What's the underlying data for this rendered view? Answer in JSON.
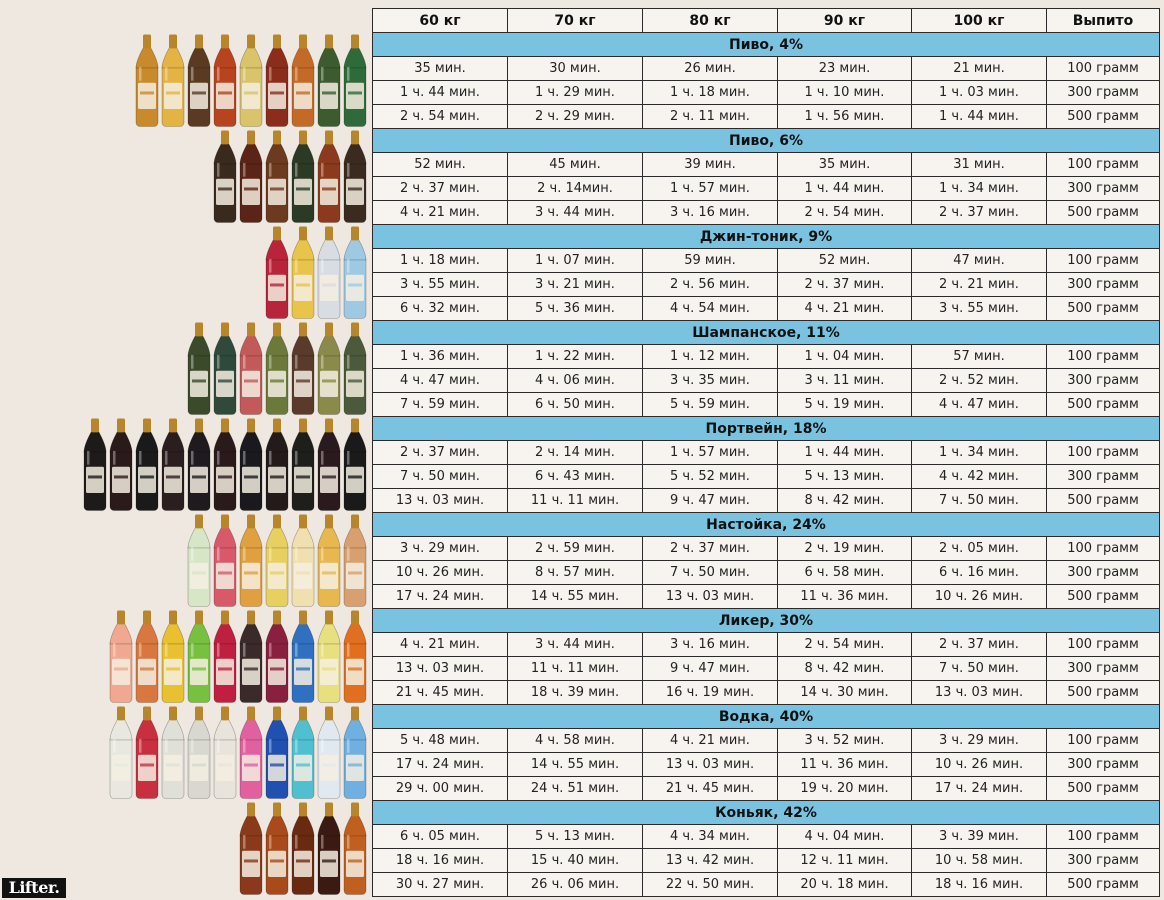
{
  "logo": "Lifter.",
  "table": {
    "headers": [
      "60 кг",
      "70 кг",
      "80 кг",
      "90 кг",
      "100 кг",
      "Выпито"
    ],
    "sections": [
      {
        "title": "Пиво, 4%",
        "bottles": {
          "count": 9,
          "colors": [
            "#c98a2b",
            "#e3b343",
            "#5a3b22",
            "#b8441f",
            "#d9c36b",
            "#8b2d1a",
            "#c46a27",
            "#3c5b2f",
            "#2f6b3a"
          ]
        },
        "rows": [
          [
            "35 мин.",
            "30 мин.",
            "26 мин.",
            "23 мин.",
            "21 мин.",
            "100 грамм"
          ],
          [
            "1 ч. 44 мин.",
            "1 ч. 29 мин.",
            "1 ч. 18 мин.",
            "1 ч. 10 мин.",
            "1 ч. 03 мин.",
            "300 грамм"
          ],
          [
            "2 ч. 54 мин.",
            "2 ч. 29 мин.",
            "2 ч. 11 мин.",
            "1 ч. 56 мин.",
            "1 ч. 44 мин.",
            "500 грамм"
          ]
        ]
      },
      {
        "title": "Пиво, 6%",
        "bottles": {
          "count": 6,
          "colors": [
            "#3a2a1e",
            "#5a2416",
            "#6b3a1f",
            "#2b3a25",
            "#8b3a1e",
            "#3b2a20"
          ]
        },
        "rows": [
          [
            "52 мин.",
            "45 мин.",
            "39 мин.",
            "35 мин.",
            "31 мин.",
            "100 грамм"
          ],
          [
            "2 ч. 37 мин.",
            "2 ч. 14мин.",
            "1 ч. 57 мин.",
            "1 ч. 44 мин.",
            "1 ч. 34 мин.",
            "300 грамм"
          ],
          [
            "4 ч. 21 мин.",
            "3 ч. 44 мин.",
            "3 ч. 16 мин.",
            "2 ч. 54 мин.",
            "2 ч. 37 мин.",
            "500 грамм"
          ]
        ]
      },
      {
        "title": "Джин-тоник, 9%",
        "bottles": {
          "count": 4,
          "colors": [
            "#b8243a",
            "#e8c44a",
            "#d8dde3",
            "#9ec9e3"
          ]
        },
        "rows": [
          [
            "1 ч. 18 мин.",
            "1 ч. 07 мин.",
            "59 мин.",
            "52 мин.",
            "47 мин.",
            "100 грамм"
          ],
          [
            "3 ч. 55 мин.",
            "3 ч. 21 мин.",
            "2 ч. 56 мин.",
            "2 ч. 37 мин.",
            "2 ч. 21 мин.",
            "300 грамм"
          ],
          [
            "6 ч. 32 мин.",
            "5 ч. 36 мин.",
            "4 ч. 54 мин.",
            "4 ч. 21 мин.",
            "3 ч. 55 мин.",
            "500 грамм"
          ]
        ]
      },
      {
        "title": "Шампанское, 11%",
        "bottles": {
          "count": 7,
          "colors": [
            "#3b4a2a",
            "#2f4a3a",
            "#c25a5a",
            "#6b7a3a",
            "#5a3a2a",
            "#8a8a4a",
            "#4a5a3a"
          ]
        },
        "rows": [
          [
            "1 ч. 36 мин.",
            "1 ч. 22 мин.",
            "1 ч. 12 мин.",
            "1 ч. 04 мин.",
            "57 мин.",
            "100 грамм"
          ],
          [
            "4 ч. 47 мин.",
            "4 ч. 06 мин.",
            "3 ч. 35 мин.",
            "3 ч. 11 мин.",
            "2 ч. 52 мин.",
            "300 грамм"
          ],
          [
            "7 ч. 59 мин.",
            "6 ч. 50 мин.",
            "5 ч. 59 мин.",
            "5 ч. 19 мин.",
            "4 ч. 47 мин.",
            "500 грамм"
          ]
        ]
      },
      {
        "title": "Портвейн, 18%",
        "bottles": {
          "count": 11,
          "colors": [
            "#1e1a1a",
            "#2a1a1a",
            "#1a1a1a",
            "#2a1e1e",
            "#1e1a1e",
            "#2a1a1a",
            "#1a1a1e",
            "#241a1a",
            "#1e1e1a",
            "#2a1a1e",
            "#1a1a1a"
          ]
        },
        "rows": [
          [
            "2 ч. 37 мин.",
            "2 ч. 14 мин.",
            "1 ч. 57 мин.",
            "1 ч. 44 мин.",
            "1 ч. 34 мин.",
            "100 грамм"
          ],
          [
            "7 ч. 50 мин.",
            "6 ч. 43 мин.",
            "5 ч. 52 мин.",
            "5 ч. 13 мин.",
            "4 ч. 42 мин.",
            "300 грамм"
          ],
          [
            "13 ч. 03 мин.",
            "11 ч. 11 мин.",
            "9 ч. 47 мин.",
            "8 ч. 42 мин.",
            "7 ч. 50 мин.",
            "500 грамм"
          ]
        ]
      },
      {
        "title": "Настойка, 24%",
        "bottles": {
          "count": 7,
          "colors": [
            "#d8e6c8",
            "#d85a6a",
            "#e0a040",
            "#e8d060",
            "#f0e0b0",
            "#e8b850",
            "#d8a070"
          ]
        },
        "rows": [
          [
            "3 ч. 29 мин.",
            "2 ч. 59 мин.",
            "2 ч. 37 мин.",
            "2 ч. 19 мин.",
            "2 ч. 05 мин.",
            "100 грамм"
          ],
          [
            "10 ч. 26 мин.",
            "8 ч. 57 мин.",
            "7 ч. 50 мин.",
            "6 ч. 58 мин.",
            "6 ч. 16 мин.",
            "300 грамм"
          ],
          [
            "17 ч. 24 мин.",
            "14 ч. 55 мин.",
            "13 ч. 03 мин.",
            "11 ч. 36 мин.",
            "10 ч. 26 мин.",
            "500 грамм"
          ]
        ]
      },
      {
        "title": "Ликер, 30%",
        "bottles": {
          "count": 10,
          "colors": [
            "#f0a890",
            "#d87840",
            "#e8c030",
            "#78c040",
            "#c02040",
            "#3a2a2a",
            "#8a2040",
            "#3070c0",
            "#e8e080",
            "#e07020"
          ]
        },
        "rows": [
          [
            "4 ч. 21 мин.",
            "3 ч. 44 мин.",
            "3 ч. 16 мин.",
            "2 ч. 54 мин.",
            "2 ч. 37 мин.",
            "100 грамм"
          ],
          [
            "13 ч. 03 мин.",
            "11 ч. 11 мин.",
            "9 ч. 47 мин.",
            "8 ч. 42 мин.",
            "7 ч. 50 мин.",
            "300 грамм"
          ],
          [
            "21 ч. 45 мин.",
            "18 ч. 39 мин.",
            "16 ч. 19 мин.",
            "14 ч. 30 мин.",
            "13 ч. 03 мин.",
            "500 грамм"
          ]
        ]
      },
      {
        "title": "Водка, 40%",
        "bottles": {
          "count": 10,
          "colors": [
            "#e8e8e0",
            "#c83040",
            "#e0e0d8",
            "#d8d8d0",
            "#e8e4dc",
            "#e060a0",
            "#2050b0",
            "#50c0d0",
            "#e0e8f0",
            "#70b0e0"
          ]
        },
        "rows": [
          [
            "5 ч. 48 мин.",
            "4 ч. 58 мин.",
            "4 ч. 21 мин.",
            "3 ч. 52 мин.",
            "3 ч. 29 мин.",
            "100 грамм"
          ],
          [
            "17 ч. 24 мин.",
            "14 ч. 55 мин.",
            "13 ч. 03 мин.",
            "11 ч. 36 мин.",
            "10 ч. 26 мин.",
            "300 грамм"
          ],
          [
            "29 ч. 00 мин.",
            "24 ч. 51 мин.",
            "21 ч. 45 мин.",
            "19 ч. 20 мин.",
            "17 ч. 24 мин.",
            "500 грамм"
          ]
        ]
      },
      {
        "title": "Коньяк, 42%",
        "bottles": {
          "count": 5,
          "colors": [
            "#8a3a1a",
            "#a84a1a",
            "#6a2a12",
            "#3a1a12",
            "#c06020"
          ]
        },
        "rows": [
          [
            "6 ч. 05 мин.",
            "5 ч. 13 мин.",
            "4 ч. 34 мин.",
            "4 ч. 04 мин.",
            "3 ч. 39 мин.",
            "100 грамм"
          ],
          [
            "18 ч. 16 мин.",
            "15 ч. 40 мин.",
            "13 ч. 42 мин.",
            "12 ч. 11 мин.",
            "10 ч. 58 мин.",
            "300 грамм"
          ],
          [
            "30 ч. 27 мин.",
            "26 ч. 06 мин.",
            "22 ч. 50 мин.",
            "20 ч. 18 мин.",
            "18 ч. 16 мин.",
            "500 грамм"
          ]
        ]
      }
    ]
  }
}
